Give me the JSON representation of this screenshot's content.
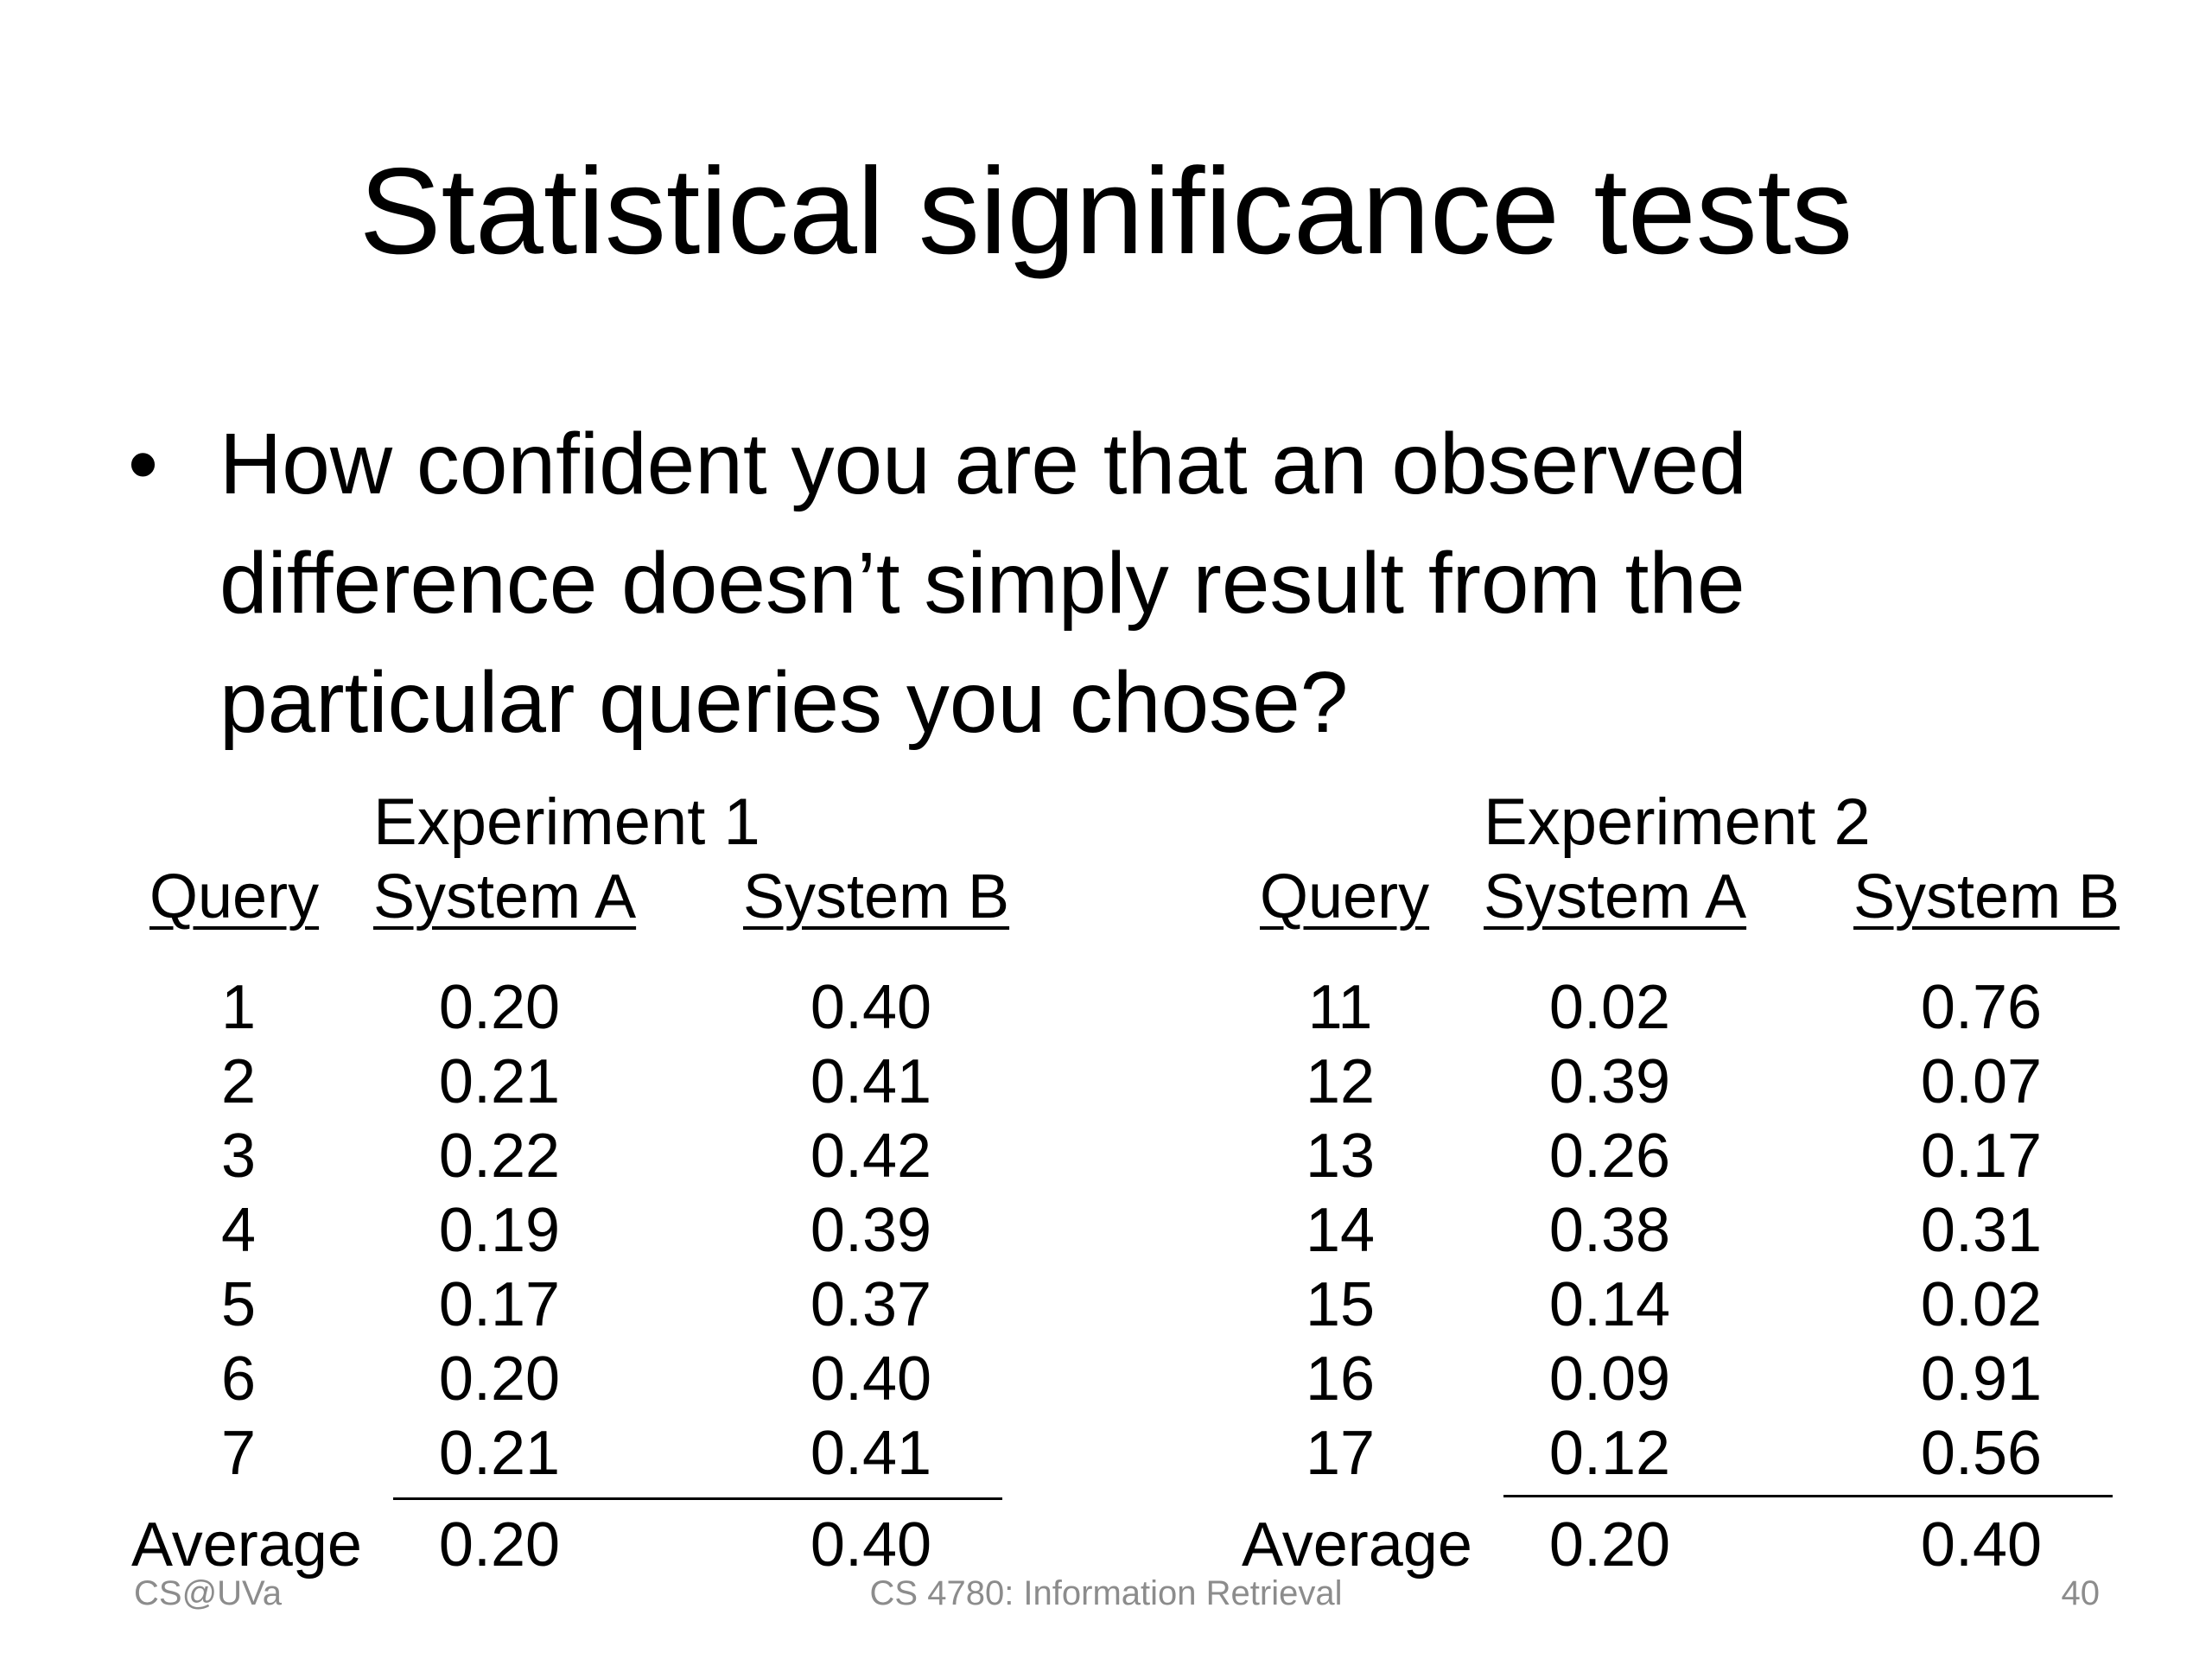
{
  "slide": {
    "title": "Statistical significance tests",
    "bullet": "How confident you are that an observed difference doesn’t simply result from the particular queries you chose?"
  },
  "experiments": [
    {
      "title": "Experiment 1",
      "headers": [
        "Query",
        "System A",
        "System B"
      ],
      "rows": [
        [
          "1",
          "0.20",
          "0.40"
        ],
        [
          "2",
          "0.21",
          "0.41"
        ],
        [
          "3",
          "0.22",
          "0.42"
        ],
        [
          "4",
          "0.19",
          "0.39"
        ],
        [
          "5",
          "0.17",
          "0.37"
        ],
        [
          "6",
          "0.20",
          "0.40"
        ],
        [
          "7",
          "0.21",
          "0.41"
        ]
      ],
      "average": [
        "Average",
        "0.20",
        "0.40"
      ]
    },
    {
      "title": "Experiment 2",
      "headers": [
        "Query",
        "System A",
        "System B"
      ],
      "rows": [
        [
          "11",
          "0.02",
          "0.76"
        ],
        [
          "12",
          "0.39",
          "0.07"
        ],
        [
          "13",
          "0.26",
          "0.17"
        ],
        [
          "14",
          "0.38",
          "0.31"
        ],
        [
          "15",
          "0.14",
          "0.02"
        ],
        [
          "16",
          "0.09",
          "0.91"
        ],
        [
          "17",
          "0.12",
          "0.56"
        ]
      ],
      "average": [
        "Average",
        "0.20",
        "0.40"
      ]
    }
  ],
  "footer": {
    "left": "CS@UVa",
    "center": "CS 4780: Information Retrieval",
    "page": "40"
  }
}
